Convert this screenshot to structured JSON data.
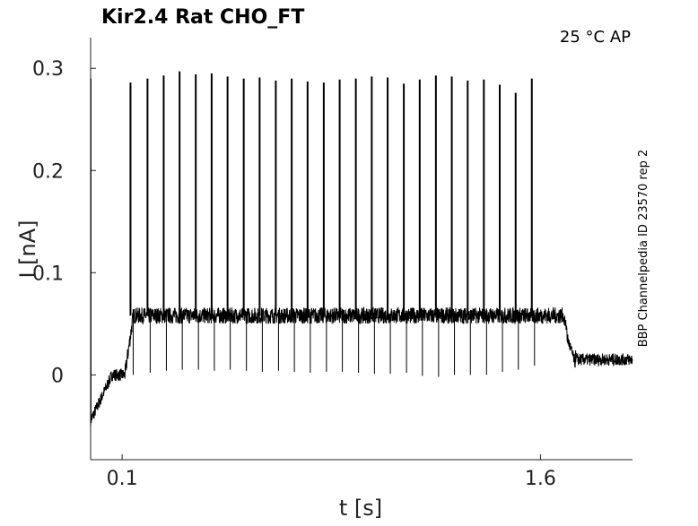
{
  "chart_data": {
    "type": "line",
    "title": "Kir2.4  Rat  CHO_FT",
    "conditions": "25 °C  AP",
    "side_label": "BBP Channelpedia ID 23570 rep 2",
    "xlabel": "t [s]",
    "ylabel": "I [nA]",
    "xlim": [
      -0.013,
      1.93
    ],
    "ylim": [
      -0.083,
      0.33
    ],
    "xticks": [
      0.1,
      1.6
    ],
    "xtick_labels": [
      "0.1",
      "1.6"
    ],
    "yticks": [
      0,
      0.1,
      0.2,
      0.3
    ],
    "ytick_labels": [
      "0",
      "0.1",
      "0.2",
      "0.3"
    ],
    "grid": false,
    "legend": "none",
    "series": [
      {
        "stimulus_start_s": 0.11,
        "stimulus_end_s": 1.68,
        "baseline_start_nA": -0.045,
        "baseline_pre_nA": 0.0,
        "plateau_nA": 0.058,
        "baseline_post_nA": 0.015,
        "initial_transient_peak_nA": 0.29,
        "spike_times_s": [
          0.13,
          0.191,
          0.249,
          0.306,
          0.364,
          0.421,
          0.478,
          0.536,
          0.593,
          0.651,
          0.708,
          0.765,
          0.823,
          0.88,
          0.938,
          0.995,
          1.052,
          1.11,
          1.167,
          1.225,
          1.282,
          1.339,
          1.397,
          1.454,
          1.511,
          1.569
        ],
        "spike_peaks_nA": [
          0.286,
          0.29,
          0.293,
          0.297,
          0.294,
          0.295,
          0.292,
          0.29,
          0.291,
          0.288,
          0.29,
          0.287,
          0.286,
          0.289,
          0.29,
          0.292,
          0.291,
          0.285,
          0.289,
          0.293,
          0.292,
          0.288,
          0.289,
          0.284,
          0.276,
          0.29
        ],
        "spike_troughs_nA": [
          0.0,
          0.002,
          0.004,
          0.005,
          0.005,
          0.004,
          0.005,
          0.004,
          0.003,
          0.004,
          0.003,
          0.002,
          0.003,
          0.003,
          0.002,
          0.001,
          0.001,
          0.002,
          -0.001,
          -0.002,
          0.0,
          0.0,
          0.0,
          0.003,
          0.005,
          0.009
        ]
      }
    ]
  }
}
